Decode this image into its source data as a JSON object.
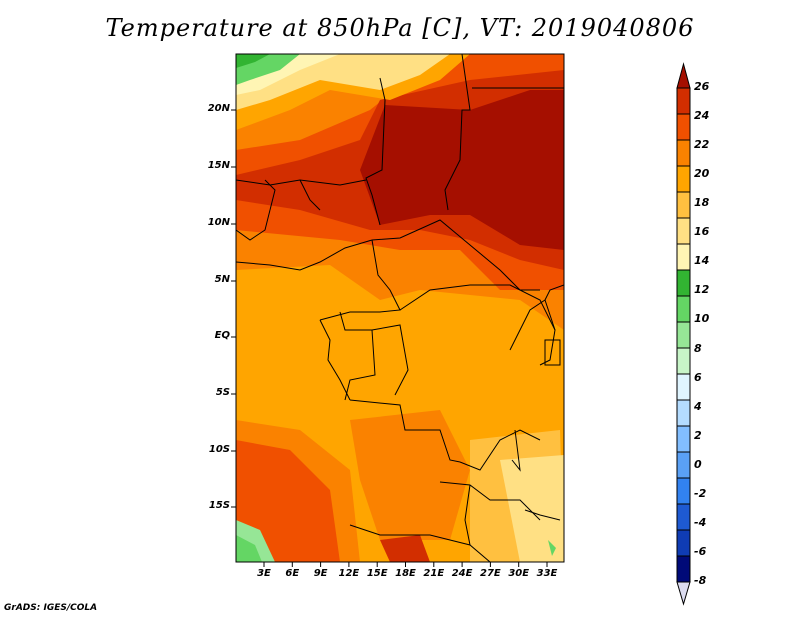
{
  "title": "Temperature at 850hPa [C], VT: 2019040806",
  "footer": "GrADS: IGES/COLA",
  "map": {
    "lat_ticks": [
      "20N",
      "15N",
      "10N",
      "5N",
      "EQ",
      "5S",
      "10S",
      "15S"
    ],
    "lon_ticks": [
      "3E",
      "6E",
      "9E",
      "12E",
      "15E",
      "18E",
      "21E",
      "24E",
      "27E",
      "30E",
      "33E"
    ],
    "lat_range": [
      -20,
      24
    ],
    "lon_range": [
      0,
      35
    ]
  },
  "colorbar": {
    "labels": [
      "26",
      "24",
      "22",
      "20",
      "18",
      "16",
      "14",
      "12",
      "10",
      "8",
      "6",
      "4",
      "2",
      "0",
      "-2",
      "-4",
      "-6",
      "-8"
    ],
    "colors": [
      "#a50f00",
      "#d22e00",
      "#f05000",
      "#fa8200",
      "#ffa500",
      "#ffc040",
      "#ffe084",
      "#fff5b4",
      "#32b432",
      "#64d664",
      "#96e696",
      "#c8f5c8",
      "#e0f5ff",
      "#b4dcff",
      "#82beff",
      "#5aa0f5",
      "#3282f0",
      "#1e5ad2",
      "#0f3cb4",
      "#000a78",
      "#dcdcf0"
    ]
  }
}
